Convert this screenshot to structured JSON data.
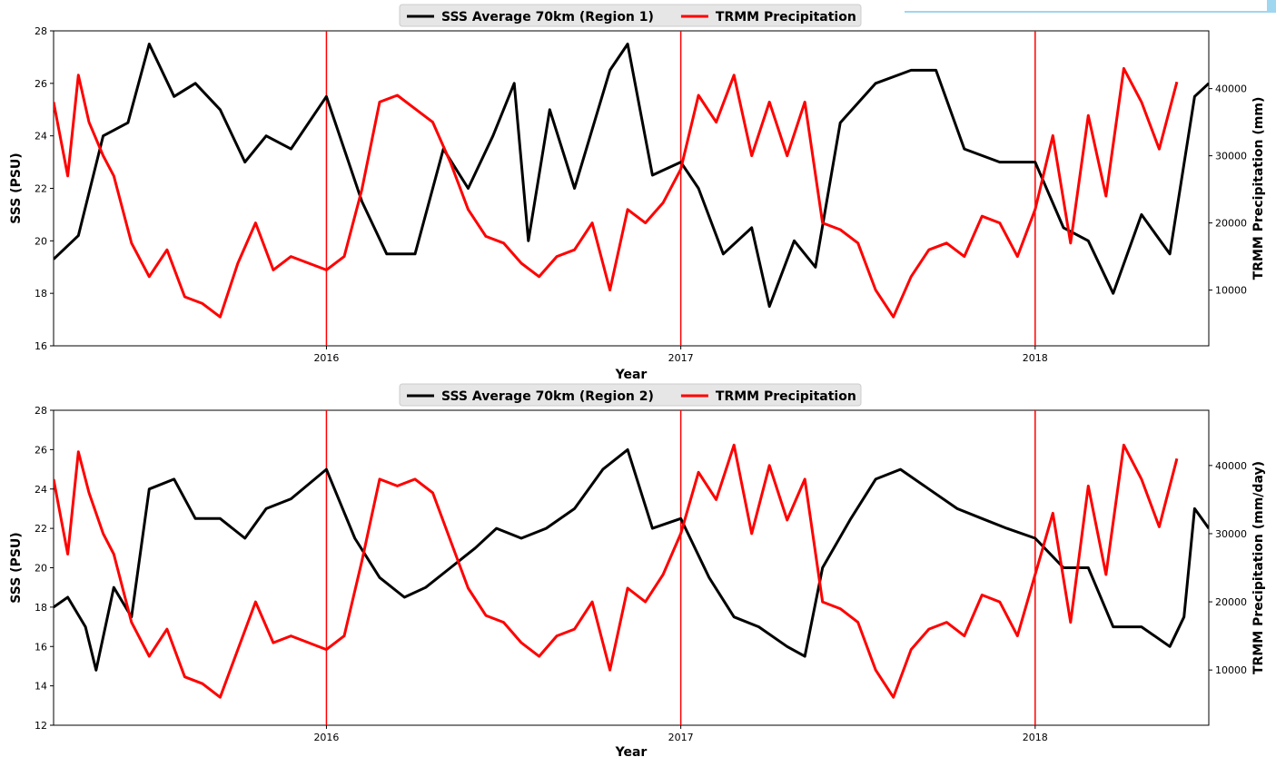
{
  "chart_data": [
    {
      "type": "line",
      "title": "",
      "xlabel": "Year",
      "ylabel": "SSS (PSU)",
      "y2label": "TRMM Precipitation (mm)",
      "xlim": [
        2015.23,
        2018.49
      ],
      "ylim": [
        16,
        28
      ],
      "y2lim": [
        1700,
        48600
      ],
      "x_ticks": [
        "2016",
        "2017",
        "2018"
      ],
      "y_ticks": [
        "16",
        "18",
        "20",
        "22",
        "24",
        "26",
        "28"
      ],
      "y2_ticks": [
        "10000",
        "20000",
        "30000",
        "40000"
      ],
      "vlines": [
        2016,
        2017,
        2018
      ],
      "legend_position": "top-center",
      "grid": false,
      "series": [
        {
          "name": "SSS Average 70km (Region 1)",
          "axis": "left",
          "color": "#000000",
          "x": [
            2015.23,
            2015.3,
            2015.37,
            2015.44,
            2015.5,
            2015.57,
            2015.63,
            2015.7,
            2015.77,
            2015.83,
            2015.9,
            2016.0,
            2016.1,
            2016.17,
            2016.25,
            2016.33,
            2016.4,
            2016.47,
            2016.53,
            2016.57,
            2016.63,
            2016.7,
            2016.8,
            2016.85,
            2016.92,
            2017.0,
            2017.05,
            2017.12,
            2017.2,
            2017.25,
            2017.32,
            2017.38,
            2017.45,
            2017.55,
            2017.65,
            2017.72,
            2017.8,
            2017.9,
            2018.0,
            2018.08,
            2018.15,
            2018.22,
            2018.3,
            2018.38,
            2018.45,
            2018.49
          ],
          "values": [
            19.3,
            20.2,
            24.0,
            24.5,
            27.5,
            25.5,
            26.0,
            25.0,
            23.0,
            24.0,
            23.5,
            25.5,
            21.5,
            19.5,
            19.5,
            23.5,
            22.0,
            24.0,
            26.0,
            20.0,
            25.0,
            22.0,
            26.5,
            27.5,
            22.5,
            23.0,
            22.0,
            19.5,
            20.5,
            17.5,
            20.0,
            19.0,
            24.5,
            26.0,
            26.5,
            26.5,
            23.5,
            23.0,
            23.0,
            20.5,
            20.0,
            18.0,
            21.0,
            19.5,
            25.5,
            26.0
          ]
        },
        {
          "name": "TRMM Precipitation",
          "axis": "right",
          "color": "#ff0000",
          "x": [
            2015.23,
            2015.27,
            2015.3,
            2015.33,
            2015.37,
            2015.4,
            2015.45,
            2015.5,
            2015.55,
            2015.6,
            2015.65,
            2015.7,
            2015.75,
            2015.8,
            2015.85,
            2015.9,
            2015.95,
            2016.0,
            2016.05,
            2016.1,
            2016.15,
            2016.2,
            2016.25,
            2016.3,
            2016.35,
            2016.4,
            2016.45,
            2016.5,
            2016.55,
            2016.6,
            2016.65,
            2016.7,
            2016.75,
            2016.8,
            2016.85,
            2016.9,
            2016.95,
            2017.0,
            2017.05,
            2017.1,
            2017.15,
            2017.2,
            2017.25,
            2017.3,
            2017.35,
            2017.4,
            2017.45,
            2017.5,
            2017.55,
            2017.6,
            2017.65,
            2017.7,
            2017.75,
            2017.8,
            2017.85,
            2017.9,
            2017.95,
            2018.0,
            2018.05,
            2018.1,
            2018.15,
            2018.2,
            2018.25,
            2018.3,
            2018.35,
            2018.4
          ],
          "values": [
            38000,
            27000,
            42000,
            35000,
            30000,
            27000,
            17000,
            12000,
            16000,
            9000,
            8000,
            6000,
            14000,
            20000,
            13000,
            15000,
            14000,
            13000,
            15000,
            25000,
            38000,
            39000,
            37000,
            35000,
            29000,
            22000,
            18000,
            17000,
            14000,
            12000,
            15000,
            16000,
            20000,
            10000,
            22000,
            20000,
            23000,
            28000,
            39000,
            35000,
            42000,
            30000,
            38000,
            30000,
            38000,
            20000,
            19000,
            17000,
            10000,
            6000,
            12000,
            16000,
            17000,
            15000,
            21000,
            20000,
            15000,
            22000,
            33000,
            17000,
            36000,
            24000,
            43000,
            38000,
            31000,
            41000
          ]
        }
      ]
    },
    {
      "type": "line",
      "title": "",
      "xlabel": "Year",
      "ylabel": "SSS (PSU)",
      "y2label": "TRMM Precipitation (mm/day)",
      "xlim": [
        2015.23,
        2018.49
      ],
      "ylim": [
        12,
        28
      ],
      "y2lim": [
        1900,
        48100
      ],
      "x_ticks": [
        "2016",
        "2017",
        "2018"
      ],
      "y_ticks": [
        "12",
        "14",
        "16",
        "18",
        "20",
        "22",
        "24",
        "26",
        "28"
      ],
      "y2_ticks": [
        "10000",
        "20000",
        "30000",
        "40000"
      ],
      "vlines": [
        2016,
        2017,
        2018
      ],
      "legend_position": "top-center",
      "grid": false,
      "series": [
        {
          "name": "SSS Average 70km (Region 2)",
          "axis": "left",
          "color": "#000000",
          "x": [
            2015.23,
            2015.27,
            2015.32,
            2015.35,
            2015.4,
            2015.45,
            2015.5,
            2015.57,
            2015.63,
            2015.7,
            2015.77,
            2015.83,
            2015.9,
            2016.0,
            2016.08,
            2016.15,
            2016.22,
            2016.28,
            2016.35,
            2016.42,
            2016.48,
            2016.55,
            2016.62,
            2016.7,
            2016.78,
            2016.85,
            2016.92,
            2017.0,
            2017.08,
            2017.15,
            2017.22,
            2017.3,
            2017.35,
            2017.4,
            2017.48,
            2017.55,
            2017.62,
            2017.7,
            2017.78,
            2017.85,
            2017.92,
            2018.0,
            2018.08,
            2018.15,
            2018.22,
            2018.3,
            2018.38,
            2018.42,
            2018.45,
            2018.49
          ],
          "values": [
            18.0,
            18.5,
            17.0,
            14.8,
            19.0,
            17.5,
            24.0,
            24.5,
            22.5,
            22.5,
            21.5,
            23.0,
            23.5,
            25.0,
            21.5,
            19.5,
            18.5,
            19.0,
            20.0,
            21.0,
            22.0,
            21.5,
            22.0,
            23.0,
            25.0,
            26.0,
            22.0,
            22.5,
            19.5,
            17.5,
            17.0,
            16.0,
            15.5,
            20.0,
            22.5,
            24.5,
            25.0,
            24.0,
            23.0,
            22.5,
            22.0,
            21.5,
            20.0,
            20.0,
            17.0,
            17.0,
            16.0,
            17.5,
            23.0,
            22.0
          ]
        },
        {
          "name": "TRMM Precipitation",
          "axis": "right",
          "color": "#ff0000",
          "x": [
            2015.23,
            2015.27,
            2015.3,
            2015.33,
            2015.37,
            2015.4,
            2015.45,
            2015.5,
            2015.55,
            2015.6,
            2015.65,
            2015.7,
            2015.75,
            2015.8,
            2015.85,
            2015.9,
            2015.95,
            2016.0,
            2016.05,
            2016.1,
            2016.15,
            2016.2,
            2016.25,
            2016.3,
            2016.35,
            2016.4,
            2016.45,
            2016.5,
            2016.55,
            2016.6,
            2016.65,
            2016.7,
            2016.75,
            2016.8,
            2016.85,
            2016.9,
            2016.95,
            2017.0,
            2017.05,
            2017.1,
            2017.15,
            2017.2,
            2017.25,
            2017.3,
            2017.35,
            2017.4,
            2017.45,
            2017.5,
            2017.55,
            2017.6,
            2017.65,
            2017.7,
            2017.75,
            2017.8,
            2017.85,
            2017.9,
            2017.95,
            2018.0,
            2018.05,
            2018.1,
            2018.15,
            2018.2,
            2018.25,
            2018.3,
            2018.35,
            2018.4
          ],
          "values": [
            38000,
            27000,
            42000,
            36000,
            30000,
            27000,
            17000,
            12000,
            16000,
            9000,
            8000,
            6000,
            13000,
            20000,
            14000,
            15000,
            14000,
            13000,
            15000,
            26000,
            38000,
            37000,
            38000,
            36000,
            29000,
            22000,
            18000,
            17000,
            14000,
            12000,
            15000,
            16000,
            20000,
            10000,
            22000,
            20000,
            24000,
            30000,
            39000,
            35000,
            43000,
            30000,
            40000,
            32000,
            38000,
            20000,
            19000,
            17000,
            10000,
            6000,
            13000,
            16000,
            17000,
            15000,
            21000,
            20000,
            15000,
            24000,
            33000,
            17000,
            37000,
            24000,
            43000,
            38000,
            31000,
            41000
          ]
        }
      ]
    }
  ]
}
